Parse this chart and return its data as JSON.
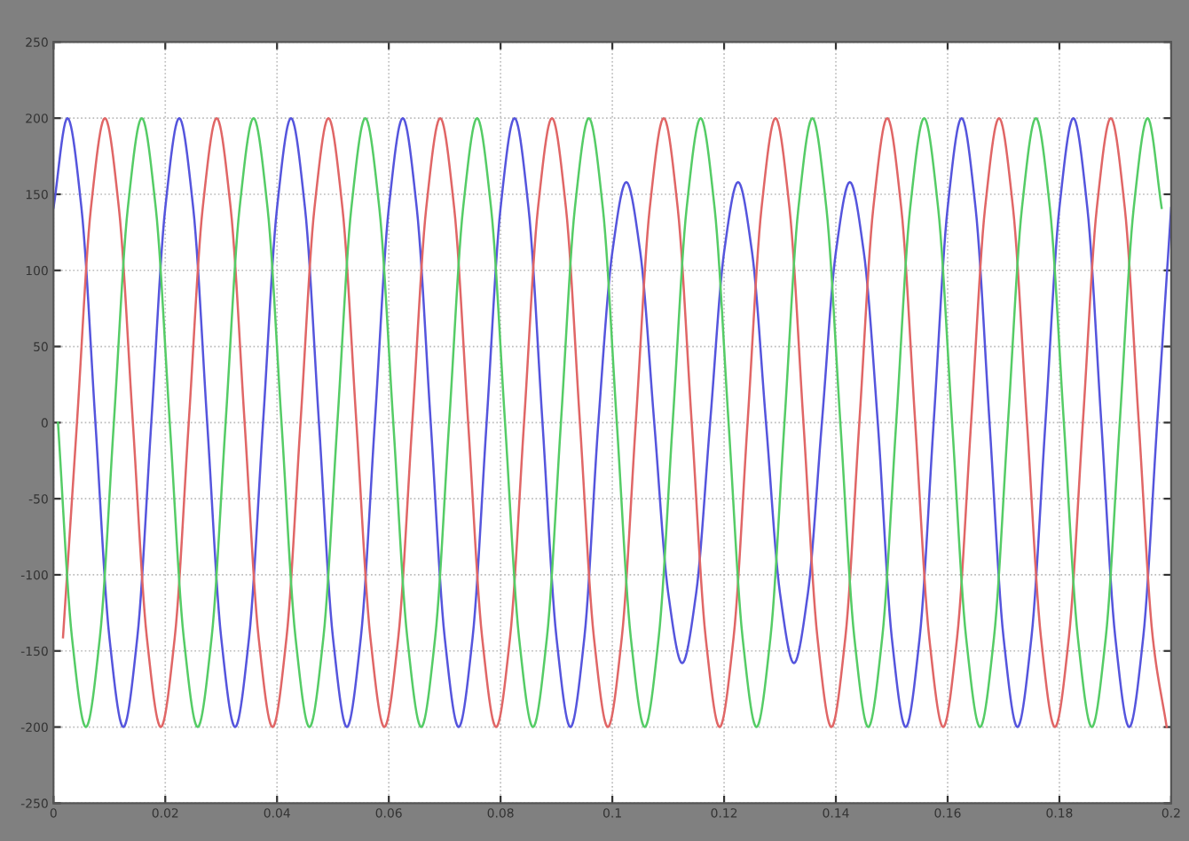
{
  "chart_data": {
    "type": "line",
    "xlim": [
      0,
      0.2
    ],
    "ylim": [
      -250,
      250
    ],
    "xticks": [
      0,
      0.02,
      0.04,
      0.06,
      0.08,
      0.1,
      0.12,
      0.14,
      0.16,
      0.18,
      0.2
    ],
    "yticks": [
      -250,
      -200,
      -150,
      -100,
      -50,
      0,
      50,
      100,
      150,
      200,
      250
    ],
    "grid": true,
    "series": [
      {
        "color": "#5555dd",
        "x": [
          0,
          0.0025,
          0.005,
          0.0075,
          0.01,
          0.0125,
          0.015,
          0.0175,
          0.02,
          0.0225,
          0.025,
          0.0275,
          0.03,
          0.0325,
          0.035,
          0.0375,
          0.04,
          0.0425,
          0.045,
          0.0475,
          0.05,
          0.0525,
          0.055,
          0.0575,
          0.06,
          0.0625,
          0.065,
          0.0675,
          0.07,
          0.0725,
          0.075,
          0.0775,
          0.08,
          0.0825,
          0.085,
          0.0875,
          0.09,
          0.0925,
          0.095,
          0.0975,
          0.1,
          0.1025,
          0.105,
          0.1075,
          0.11,
          0.1125,
          0.115,
          0.1175,
          0.12,
          0.1225,
          0.125,
          0.1275,
          0.13,
          0.1325,
          0.135,
          0.1375,
          0.14,
          0.1425,
          0.145,
          0.1475,
          0.15,
          0.1525,
          0.155,
          0.1575,
          0.16,
          0.1625,
          0.165,
          0.1675,
          0.17,
          0.1725,
          0.175,
          0.1775,
          0.18,
          0.1825,
          0.185,
          0.1875,
          0.19,
          0.1925,
          0.195,
          0.1975,
          0.2
        ],
        "values": [
          141,
          200,
          141,
          0,
          -141,
          -200,
          -141,
          0,
          141,
          200,
          141,
          0,
          -141,
          -200,
          -141,
          0,
          141,
          200,
          141,
          0,
          -141,
          -200,
          -141,
          0,
          141,
          200,
          141,
          0,
          -141,
          -200,
          -141,
          0,
          141,
          200,
          141,
          0,
          -141,
          -200,
          -141,
          0,
          112,
          158,
          112,
          0,
          -112,
          -158,
          -112,
          0,
          112,
          158,
          112,
          0,
          -112,
          -158,
          -112,
          0,
          112,
          158,
          112,
          0,
          -141,
          -200,
          -141,
          0,
          141,
          200,
          141,
          0,
          -141,
          -200,
          -141,
          0,
          141,
          200,
          141,
          0,
          -141,
          -200,
          -141,
          0,
          141
        ]
      },
      {
        "color": "#e06666",
        "x": [
          0.0017,
          0.0042,
          0.0067,
          0.0092,
          0.0117,
          0.0142,
          0.0167,
          0.0192,
          0.0217,
          0.0242,
          0.0267,
          0.0292,
          0.0317,
          0.0342,
          0.0367,
          0.0392,
          0.0417,
          0.0442,
          0.0467,
          0.0492,
          0.0517,
          0.0542,
          0.0567,
          0.0592,
          0.0617,
          0.0642,
          0.0667,
          0.0692,
          0.0717,
          0.0742,
          0.0767,
          0.0792,
          0.0817,
          0.0842,
          0.0867,
          0.0892,
          0.0917,
          0.0942,
          0.0967,
          0.0992,
          0.1017,
          0.1042,
          0.1067,
          0.1092,
          0.1117,
          0.1142,
          0.1167,
          0.1192,
          0.1217,
          0.1242,
          0.1267,
          0.1292,
          0.1317,
          0.1342,
          0.1367,
          0.1392,
          0.1417,
          0.1442,
          0.1467,
          0.1492,
          0.1517,
          0.1542,
          0.1567,
          0.1592,
          0.1617,
          0.1642,
          0.1667,
          0.1692,
          0.1717,
          0.1742,
          0.1767,
          0.1792,
          0.1817,
          0.1842,
          0.1867,
          0.1892,
          0.1917,
          0.1942,
          0.1967,
          0.1992
        ],
        "values": [
          -141,
          0,
          141,
          200,
          141,
          0,
          -141,
          -200,
          -141,
          0,
          141,
          200,
          141,
          0,
          -141,
          -200,
          -141,
          0,
          141,
          200,
          141,
          0,
          -141,
          -200,
          -141,
          0,
          141,
          200,
          141,
          0,
          -141,
          -200,
          -141,
          0,
          141,
          200,
          141,
          0,
          -141,
          -200,
          -141,
          0,
          141,
          200,
          141,
          0,
          -141,
          -200,
          -141,
          0,
          141,
          200,
          141,
          0,
          -141,
          -200,
          -141,
          0,
          141,
          200,
          141,
          0,
          -141,
          -200,
          -141,
          0,
          141,
          200,
          141,
          0,
          -141,
          -200,
          -141,
          0,
          141,
          200,
          141,
          0,
          -141,
          -200
        ]
      },
      {
        "color": "#55cc66",
        "x": [
          0.0008,
          0.0033,
          0.0058,
          0.0083,
          0.0108,
          0.0133,
          0.0158,
          0.0183,
          0.0208,
          0.0233,
          0.0258,
          0.0283,
          0.0308,
          0.0333,
          0.0358,
          0.0383,
          0.0408,
          0.0433,
          0.0458,
          0.0483,
          0.0508,
          0.0533,
          0.0558,
          0.0583,
          0.0608,
          0.0633,
          0.0658,
          0.0683,
          0.0708,
          0.0733,
          0.0758,
          0.0783,
          0.0808,
          0.0833,
          0.0858,
          0.0883,
          0.0908,
          0.0933,
          0.0958,
          0.0983,
          0.1008,
          0.1033,
          0.1058,
          0.1083,
          0.1108,
          0.1133,
          0.1158,
          0.1183,
          0.1208,
          0.1233,
          0.1258,
          0.1283,
          0.1308,
          0.1333,
          0.1358,
          0.1383,
          0.1408,
          0.1433,
          0.1458,
          0.1483,
          0.1508,
          0.1533,
          0.1558,
          0.1583,
          0.1608,
          0.1633,
          0.1658,
          0.1683,
          0.1708,
          0.1733,
          0.1758,
          0.1783,
          0.1808,
          0.1833,
          0.1858,
          0.1883,
          0.1908,
          0.1933,
          0.1958,
          0.1983
        ],
        "values": [
          0,
          -141,
          -200,
          -141,
          0,
          141,
          200,
          141,
          0,
          -141,
          -200,
          -141,
          0,
          141,
          200,
          141,
          0,
          -141,
          -200,
          -141,
          0,
          141,
          200,
          141,
          0,
          -141,
          -200,
          -141,
          0,
          141,
          200,
          141,
          0,
          -141,
          -200,
          -141,
          0,
          141,
          200,
          141,
          0,
          -141,
          -200,
          -141,
          0,
          141,
          200,
          141,
          0,
          -141,
          -200,
          -141,
          0,
          141,
          200,
          141,
          0,
          -141,
          -200,
          -141,
          0,
          141,
          200,
          141,
          0,
          -141,
          -200,
          -141,
          0,
          141,
          200,
          141,
          0,
          -141,
          -200,
          -141,
          0,
          141,
          200,
          141
        ]
      }
    ]
  }
}
